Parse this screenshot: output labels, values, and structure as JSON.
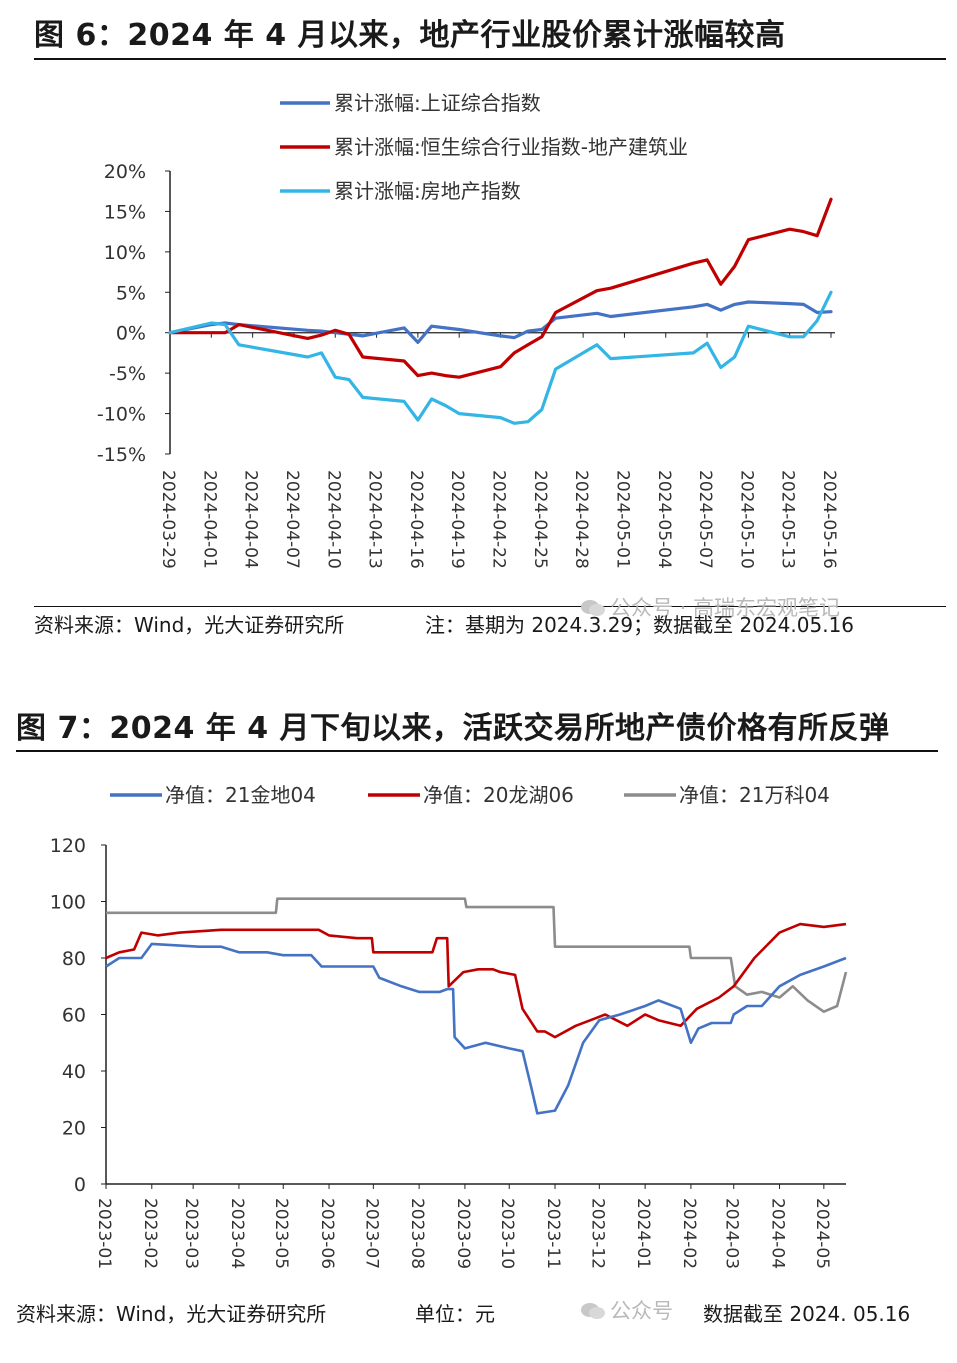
{
  "figure6": {
    "title": "图 6：2024 年 4 月以来，地产行业股价累计涨幅较高",
    "source": "资料来源：Wind，光大证券研究所",
    "note": "注：基期为 2024.3.29；数据截至 2024.05.16",
    "watermark": "公众号 · 高瑞东宏观笔记"
  },
  "figure7": {
    "title": "图 7：2024 年 4 月下旬以来，活跃交易所地产债价格有所反弹",
    "source": "资料来源：Wind，光大证券研究所",
    "unit": "单位：元",
    "watermark": "公众号",
    "date_note": "数据截至 2024. 05.16"
  },
  "chart_data": [
    {
      "type": "line",
      "title": "",
      "ylim": [
        -15,
        20
      ],
      "y_tick_labels": [
        "20%",
        "15%",
        "10%",
        "5%",
        "0%",
        "-5%",
        "-10%",
        "-15%"
      ],
      "x_tick_labels": [
        "2024-03-29",
        "2024-04-01",
        "2024-04-04",
        "2024-04-07",
        "2024-04-10",
        "2024-04-13",
        "2024-04-16",
        "2024-04-19",
        "2024-04-22",
        "2024-04-25",
        "2024-04-28",
        "2024-05-01",
        "2024-05-04",
        "2024-05-07",
        "2024-05-10",
        "2024-05-13",
        "2024-05-16"
      ],
      "legend_position": "top",
      "grid": false,
      "series": [
        {
          "name": "累计涨幅:上证综合指数",
          "color": "#4472c4",
          "x": [
            "2024-03-29",
            "2024-04-01",
            "2024-04-02",
            "2024-04-03",
            "2024-04-08",
            "2024-04-09",
            "2024-04-10",
            "2024-04-11",
            "2024-04-12",
            "2024-04-15",
            "2024-04-16",
            "2024-04-17",
            "2024-04-18",
            "2024-04-19",
            "2024-04-22",
            "2024-04-23",
            "2024-04-24",
            "2024-04-25",
            "2024-04-26",
            "2024-04-29",
            "2024-04-30",
            "2024-05-06",
            "2024-05-07",
            "2024-05-08",
            "2024-05-09",
            "2024-05-10",
            "2024-05-13",
            "2024-05-14",
            "2024-05-15",
            "2024-05-16"
          ],
          "y": [
            0,
            1.0,
            1.2,
            1.0,
            0.3,
            0.2,
            0,
            -0.2,
            -0.4,
            0.6,
            -1.2,
            0.8,
            0.6,
            0.4,
            -0.4,
            -0.6,
            0.2,
            0.4,
            1.8,
            2.4,
            2.0,
            3.2,
            3.5,
            2.8,
            3.5,
            3.8,
            3.6,
            3.5,
            2.5,
            2.6
          ]
        },
        {
          "name": "累计涨幅:恒生综合行业指数-地产建筑业",
          "color": "#c00000",
          "x": [
            "2024-03-29",
            "2024-04-01",
            "2024-04-02",
            "2024-04-03",
            "2024-04-08",
            "2024-04-09",
            "2024-04-10",
            "2024-04-11",
            "2024-04-12",
            "2024-04-15",
            "2024-04-16",
            "2024-04-17",
            "2024-04-18",
            "2024-04-19",
            "2024-04-22",
            "2024-04-23",
            "2024-04-24",
            "2024-04-25",
            "2024-04-26",
            "2024-04-29",
            "2024-04-30",
            "2024-05-06",
            "2024-05-07",
            "2024-05-08",
            "2024-05-09",
            "2024-05-10",
            "2024-05-13",
            "2024-05-14",
            "2024-05-15",
            "2024-05-16"
          ],
          "y": [
            0,
            0,
            0,
            1.0,
            -0.7,
            -0.3,
            0.3,
            -0.2,
            -3.0,
            -3.5,
            -5.3,
            -5.0,
            -5.3,
            -5.5,
            -4.2,
            -2.5,
            -1.5,
            -0.5,
            2.5,
            5.2,
            5.5,
            8.6,
            9.0,
            6.0,
            8.2,
            11.5,
            12.8,
            12.5,
            12.0,
            16.5
          ]
        },
        {
          "name": "累计涨幅:房地产指数",
          "color": "#33b5e5",
          "x": [
            "2024-03-29",
            "2024-04-01",
            "2024-04-02",
            "2024-04-03",
            "2024-04-08",
            "2024-04-09",
            "2024-04-10",
            "2024-04-11",
            "2024-04-12",
            "2024-04-15",
            "2024-04-16",
            "2024-04-17",
            "2024-04-18",
            "2024-04-19",
            "2024-04-22",
            "2024-04-23",
            "2024-04-24",
            "2024-04-25",
            "2024-04-26",
            "2024-04-29",
            "2024-04-30",
            "2024-05-06",
            "2024-05-07",
            "2024-05-08",
            "2024-05-09",
            "2024-05-10",
            "2024-05-13",
            "2024-05-14",
            "2024-05-15",
            "2024-05-16"
          ],
          "y": [
            0,
            1.2,
            1.0,
            -1.5,
            -3.0,
            -2.5,
            -5.5,
            -5.8,
            -8.0,
            -8.5,
            -10.8,
            -8.2,
            -9.0,
            -10.0,
            -10.5,
            -11.2,
            -11.0,
            -9.5,
            -4.5,
            -1.5,
            -3.2,
            -2.5,
            -1.3,
            -4.3,
            -3.0,
            0.8,
            -0.5,
            -0.5,
            1.5,
            5.0
          ]
        }
      ]
    },
    {
      "type": "line",
      "title": "",
      "ylim": [
        0,
        120
      ],
      "y_tick_labels": [
        "120",
        "100",
        "80",
        "60",
        "40",
        "20",
        "0"
      ],
      "x_tick_labels": [
        "2023-01",
        "2023-02",
        "2023-03",
        "2023-04",
        "2023-05",
        "2023-06",
        "2023-07",
        "2023-08",
        "2023-09",
        "2023-10",
        "2023-11",
        "2023-12",
        "2024-01",
        "2024-02",
        "2024-03",
        "2024-04",
        "2024-05"
      ],
      "legend_position": "top",
      "grid": false,
      "series": [
        {
          "name": "净值：21金地04",
          "color": "#4472c4",
          "x": [
            "2023-01-01",
            "2023-01-10",
            "2023-01-25",
            "2023-02-01",
            "2023-03-05",
            "2023-03-20",
            "2023-04-01",
            "2023-04-20",
            "2023-05-01",
            "2023-05-20",
            "2023-05-27",
            "2023-06-01",
            "2023-06-20",
            "2023-07-01",
            "2023-07-05",
            "2023-07-20",
            "2023-08-01",
            "2023-08-15",
            "2023-08-20",
            "2023-08-24",
            "2023-08-25",
            "2023-09-01",
            "2023-09-15",
            "2023-10-01",
            "2023-10-10",
            "2023-10-16",
            "2023-10-20",
            "2023-11-01",
            "2023-11-10",
            "2023-11-20",
            "2023-12-01",
            "2023-12-15",
            "2024-01-01",
            "2024-01-10",
            "2024-01-25",
            "2024-02-01",
            "2024-02-06",
            "2024-02-15",
            "2024-02-28",
            "2024-03-01",
            "2024-03-10",
            "2024-03-20",
            "2024-04-01",
            "2024-04-15",
            "2024-05-01",
            "2024-05-16"
          ],
          "y": [
            77,
            80,
            80,
            85,
            84,
            84,
            82,
            82,
            81,
            81,
            77,
            77,
            77,
            77,
            73,
            70,
            68,
            68,
            69,
            69,
            52,
            48,
            50,
            48,
            47,
            34,
            25,
            26,
            35,
            50,
            58,
            60,
            63,
            65,
            62,
            50,
            55,
            57,
            57,
            60,
            63,
            63,
            70,
            74,
            77,
            80
          ]
        },
        {
          "name": "净值：20龙湖06",
          "color": "#c00000",
          "x": [
            "2023-01-01",
            "2023-01-10",
            "2023-01-20",
            "2023-01-25",
            "2023-02-05",
            "2023-02-20",
            "2023-03-20",
            "2023-04-20",
            "2023-05-01",
            "2023-05-25",
            "2023-06-01",
            "2023-06-20",
            "2023-06-30",
            "2023-07-01",
            "2023-07-20",
            "2023-08-10",
            "2023-08-13",
            "2023-08-20",
            "2023-08-21",
            "2023-08-25",
            "2023-08-31",
            "2023-09-10",
            "2023-09-20",
            "2023-09-25",
            "2023-10-05",
            "2023-10-10",
            "2023-10-20",
            "2023-10-25",
            "2023-11-01",
            "2023-11-15",
            "2023-11-25",
            "2023-12-05",
            "2023-12-20",
            "2024-01-01",
            "2024-01-10",
            "2024-01-25",
            "2024-02-05",
            "2024-02-20",
            "2024-03-01",
            "2024-03-15",
            "2024-04-01",
            "2024-04-15",
            "2024-05-01",
            "2024-05-16"
          ],
          "y": [
            80,
            82,
            83,
            89,
            88,
            89,
            90,
            90,
            90,
            90,
            88,
            87,
            87,
            82,
            82,
            82,
            87,
            87,
            70,
            72,
            75,
            76,
            76,
            75,
            74,
            62,
            54,
            54,
            52,
            56,
            58,
            60,
            56,
            60,
            58,
            56,
            62,
            66,
            70,
            80,
            89,
            92,
            91,
            92
          ]
        },
        {
          "name": "净值：21万科04",
          "color": "#8c8c8c",
          "x": [
            "2023-01-01",
            "2023-04-26",
            "2023-04-27",
            "2023-05-15",
            "2023-09-01",
            "2023-09-02",
            "2023-10-31",
            "2023-11-01",
            "2023-11-15",
            "2024-01-31",
            "2024-02-01",
            "2024-02-28",
            "2024-03-02",
            "2024-03-10",
            "2024-03-20",
            "2024-04-01",
            "2024-04-10",
            "2024-04-20",
            "2024-05-01",
            "2024-05-10",
            "2024-05-16"
          ],
          "y": [
            96,
            96,
            101,
            101,
            101,
            98,
            98,
            84,
            84,
            84,
            80,
            80,
            70,
            67,
            68,
            66,
            70,
            65,
            61,
            63,
            75
          ]
        }
      ]
    }
  ]
}
